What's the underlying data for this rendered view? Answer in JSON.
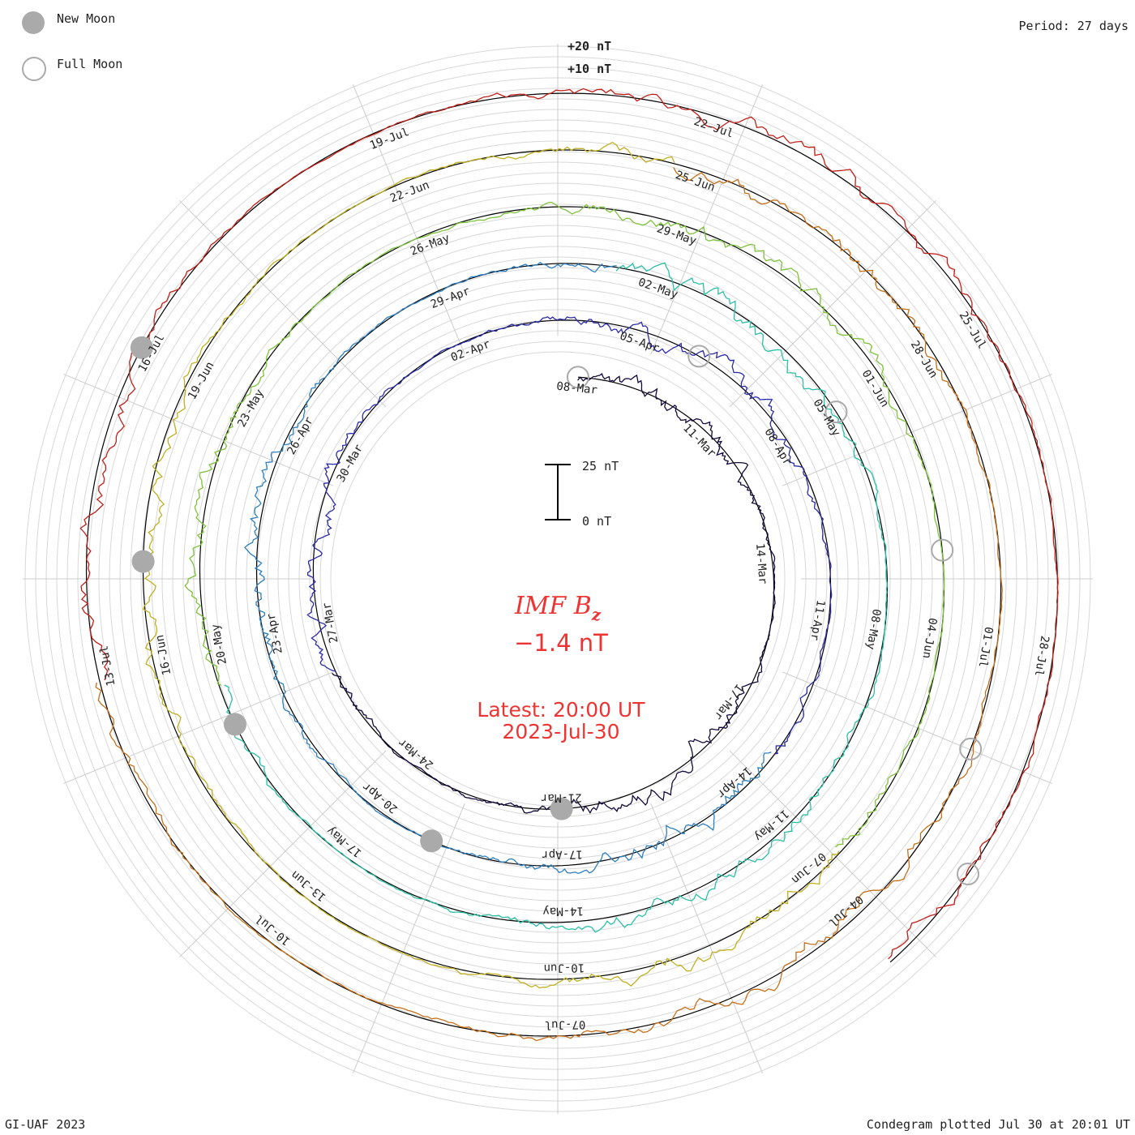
{
  "legend": {
    "new_moon_label": "New Moon",
    "full_moon_label": "Full Moon",
    "new_moon_color": "#aaaaaa",
    "full_moon_color": "#aaaaaa"
  },
  "period_text": "Period: 27 days",
  "footer_left": "GI-UAF 2023",
  "footer_right": "Condegram plotted Jul 30 at 20:01 UT",
  "chart_data": {
    "type": "line",
    "subtype": "condegram-spiral",
    "title": "IMF Bz",
    "title_main": "IMF B",
    "title_sub": "z",
    "current_value": "−1.4 nT",
    "latest_time": "Latest: 20:00 UT",
    "latest_date": "2023-Jul-30",
    "period_days": 27,
    "scale_bar": {
      "top_label": "25 nT",
      "bottom_label": "0 nT",
      "span_nT": 25
    },
    "reference_labels": [
      "+20 nT",
      "+10 nT"
    ],
    "start_date": "2023-Mar-08",
    "end_date": "2023-Jul-30",
    "value_range_nT": [
      -20,
      20
    ],
    "date_ticks": [
      "08-Mar",
      "11-Mar",
      "14-Mar",
      "17-Mar",
      "21-Mar",
      "24-Mar",
      "27-Mar",
      "30-Mar",
      "02-Apr",
      "05-Apr",
      "08-Apr",
      "11-Apr",
      "14-Apr",
      "17-Apr",
      "20-Apr",
      "23-Apr",
      "26-Apr",
      "29-Apr",
      "02-May",
      "05-May",
      "08-May",
      "11-May",
      "14-May",
      "17-May",
      "20-May",
      "23-May",
      "26-May",
      "29-May",
      "01-Jun",
      "04-Jun",
      "07-Jun",
      "10-Jun",
      "13-Jun",
      "16-Jun",
      "19-Jun",
      "22-Jun",
      "25-Jun",
      "28-Jun",
      "01-Jul",
      "04-Jul",
      "07-Jul",
      "10-Jul",
      "13-Jul",
      "16-Jul",
      "19-Jul",
      "22-Jul",
      "25-Jul",
      "28-Jul"
    ],
    "tick_day_offsets": [
      0,
      3,
      6,
      9,
      13,
      16,
      19,
      22,
      25,
      28,
      31,
      34,
      37,
      40,
      43,
      46,
      49,
      52,
      55,
      58,
      61,
      64,
      67,
      70,
      73,
      76,
      79,
      82,
      85,
      88,
      91,
      94,
      97,
      100,
      103,
      106,
      109,
      112,
      115,
      118,
      121,
      124,
      127,
      130,
      133,
      136,
      139,
      142
    ],
    "new_moon_days": [
      13,
      42,
      72,
      101,
      130
    ],
    "full_moon_days": [
      0,
      29,
      58,
      87,
      116,
      144
    ],
    "series_colors": [
      "#14093a",
      "#2b2ba8",
      "#2e7fbf",
      "#2bbfa6",
      "#7ec23a",
      "#c0b020",
      "#c6701a",
      "#c0201a"
    ]
  }
}
